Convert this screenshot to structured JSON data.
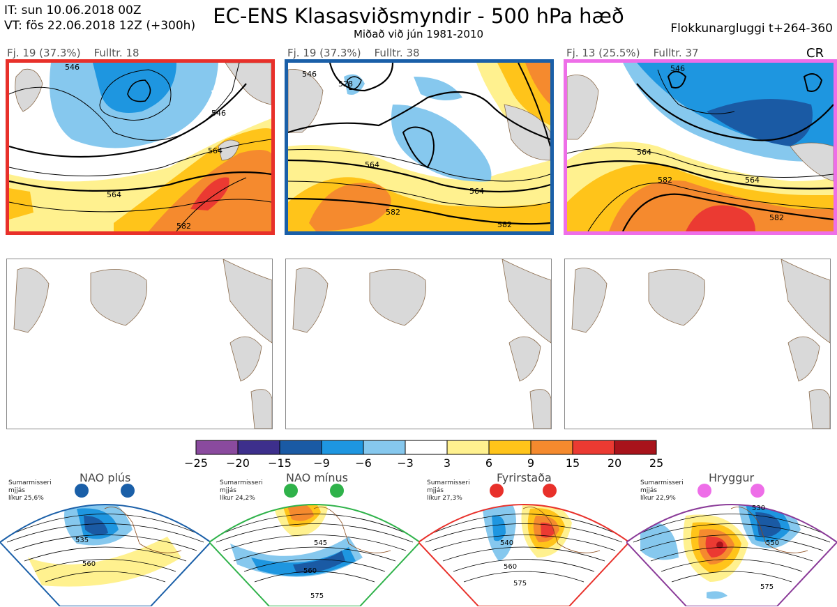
{
  "header": {
    "it_line": "IT: sun 10.06.2018 00Z",
    "vt_line": "VT: fös 22.06.2018 12Z  (+300h)",
    "title": "EC-ENS Klasasviðsmyndir - 500 hPa hæð",
    "subtitle": "Miðað við jún 1981-2010",
    "window": "Flokkunargluggi t+264-360",
    "cr_label": "CR"
  },
  "clusters": [
    {
      "label": "Fj. 19 (37.3%)    Fulltr. 18",
      "border_color": "#e8302a",
      "contours": [
        "546",
        "546",
        "564",
        "564",
        "582"
      ]
    },
    {
      "label": "Fj. 19 (37.3%)    Fulltr. 38",
      "border_color": "#1a5fa8",
      "contours": [
        "546",
        "528",
        "564",
        "564",
        "582",
        "582"
      ]
    },
    {
      "label": "Fj. 13 (25.5%)    Fulltr. 37",
      "border_color": "#ee6ee8",
      "contours": [
        "546",
        "564",
        "564",
        "582",
        "582"
      ]
    }
  ],
  "colorbar": {
    "colors": [
      "#8a4a9e",
      "#3d2f8c",
      "#1a5aa4",
      "#1e96e0",
      "#86c8ee",
      "#ffffff",
      "#fff18f",
      "#ffc41a",
      "#f58a2e",
      "#eb3a32",
      "#a8131b"
    ],
    "labels": [
      "−25",
      "−20",
      "−15",
      "−9",
      "−6",
      "−3",
      "3",
      "6",
      "9",
      "15",
      "20",
      "25"
    ]
  },
  "regimes": [
    {
      "title": "NAO plús",
      "note": "Sumarmisseri\nmjjás\nlíkur 25,6%",
      "color": "#1a5fa8",
      "contours": [
        "535",
        "560"
      ]
    },
    {
      "title": "NAO mínus",
      "note": "Sumarmisseri\nmjjás\nlíkur 24,2%",
      "color": "#2fb24a",
      "contours": [
        "545",
        "560",
        "575"
      ]
    },
    {
      "title": "Fyrirstaða",
      "note": "Sumarmisseri\nmjjás\nlíkur 27,3%",
      "color": "#e8302a",
      "contours": [
        "540",
        "560",
        "575"
      ]
    },
    {
      "title": "Hryggur",
      "note": "Sumarmisseri\nmjjás\nlíkur 22,9%",
      "color": "#8a3a98",
      "contours": [
        "530",
        "550",
        "575"
      ]
    }
  ]
}
